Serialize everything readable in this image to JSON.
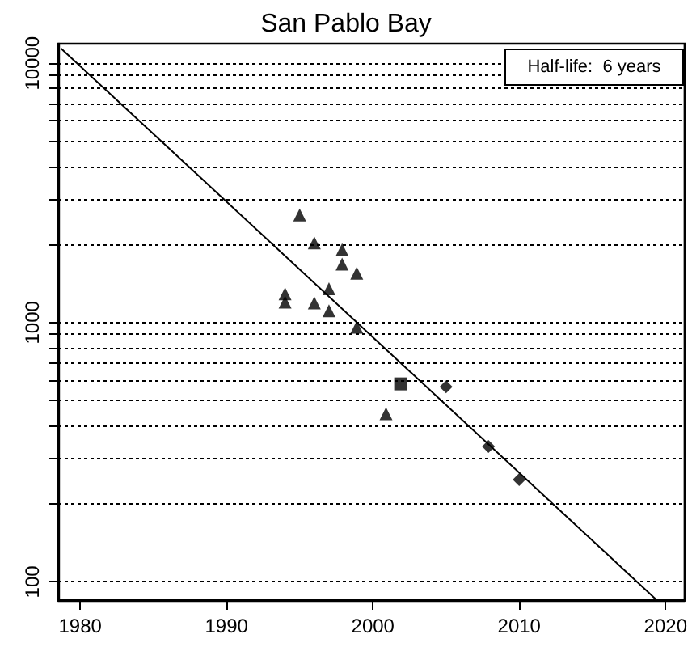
{
  "chart_data": {
    "type": "scatter",
    "title": "San Pablo Bay",
    "log": "y",
    "grid": "y",
    "xlim": [
      1978.5,
      2021.3
    ],
    "xticks": [
      1980,
      1990,
      2000,
      2010,
      2020
    ],
    "ylim": [
      85,
      11900
    ],
    "yticks": [
      100,
      {
        "value": 200,
        "label": null
      },
      {
        "value": 300,
        "label": null
      },
      {
        "value": 400,
        "label": null
      },
      {
        "value": 500,
        "label": null
      },
      {
        "value": 600,
        "label": null
      },
      {
        "value": 700,
        "label": null
      },
      {
        "value": 800,
        "label": null
      },
      {
        "value": 900,
        "label": null
      },
      1000,
      {
        "value": 2000,
        "label": null
      },
      {
        "value": 3000,
        "label": null
      },
      {
        "value": 4000,
        "label": null
      },
      {
        "value": 5000,
        "label": null
      },
      {
        "value": 6000,
        "label": null
      },
      {
        "value": 7000,
        "label": null
      },
      {
        "value": 8000,
        "label": null
      },
      {
        "value": 9000,
        "label": null
      },
      10000
    ],
    "annotations": [
      "Half-life:  6 years"
    ],
    "series": [
      {
        "marker": "triangle",
        "color": "#000000",
        "x": [
          1995.0,
          1996.0,
          1997.9,
          1997.9,
          1998.9,
          1997.0,
          1994.0,
          1994.0,
          1996.0,
          1997.0,
          1998.9,
          2000.9
        ],
        "values": [
          2600,
          2030,
          1910,
          1680,
          1550,
          1350,
          1290,
          1200,
          1190,
          1110,
          960,
          445
        ]
      },
      {
        "marker": "square",
        "color": "#000000",
        "x": [
          2001.9
        ],
        "values": [
          580
        ]
      },
      {
        "marker": "diamond",
        "color": "#000000",
        "x": [
          2005.0,
          2007.9,
          2010.0
        ],
        "values": [
          565,
          333,
          248
        ]
      },
      {
        "type": "line",
        "marker": "none",
        "line_style": "solid",
        "color": "#000000",
        "x": [
          1978.7,
          2019.4
        ],
        "values": [
          11400,
          85
        ]
      }
    ]
  }
}
